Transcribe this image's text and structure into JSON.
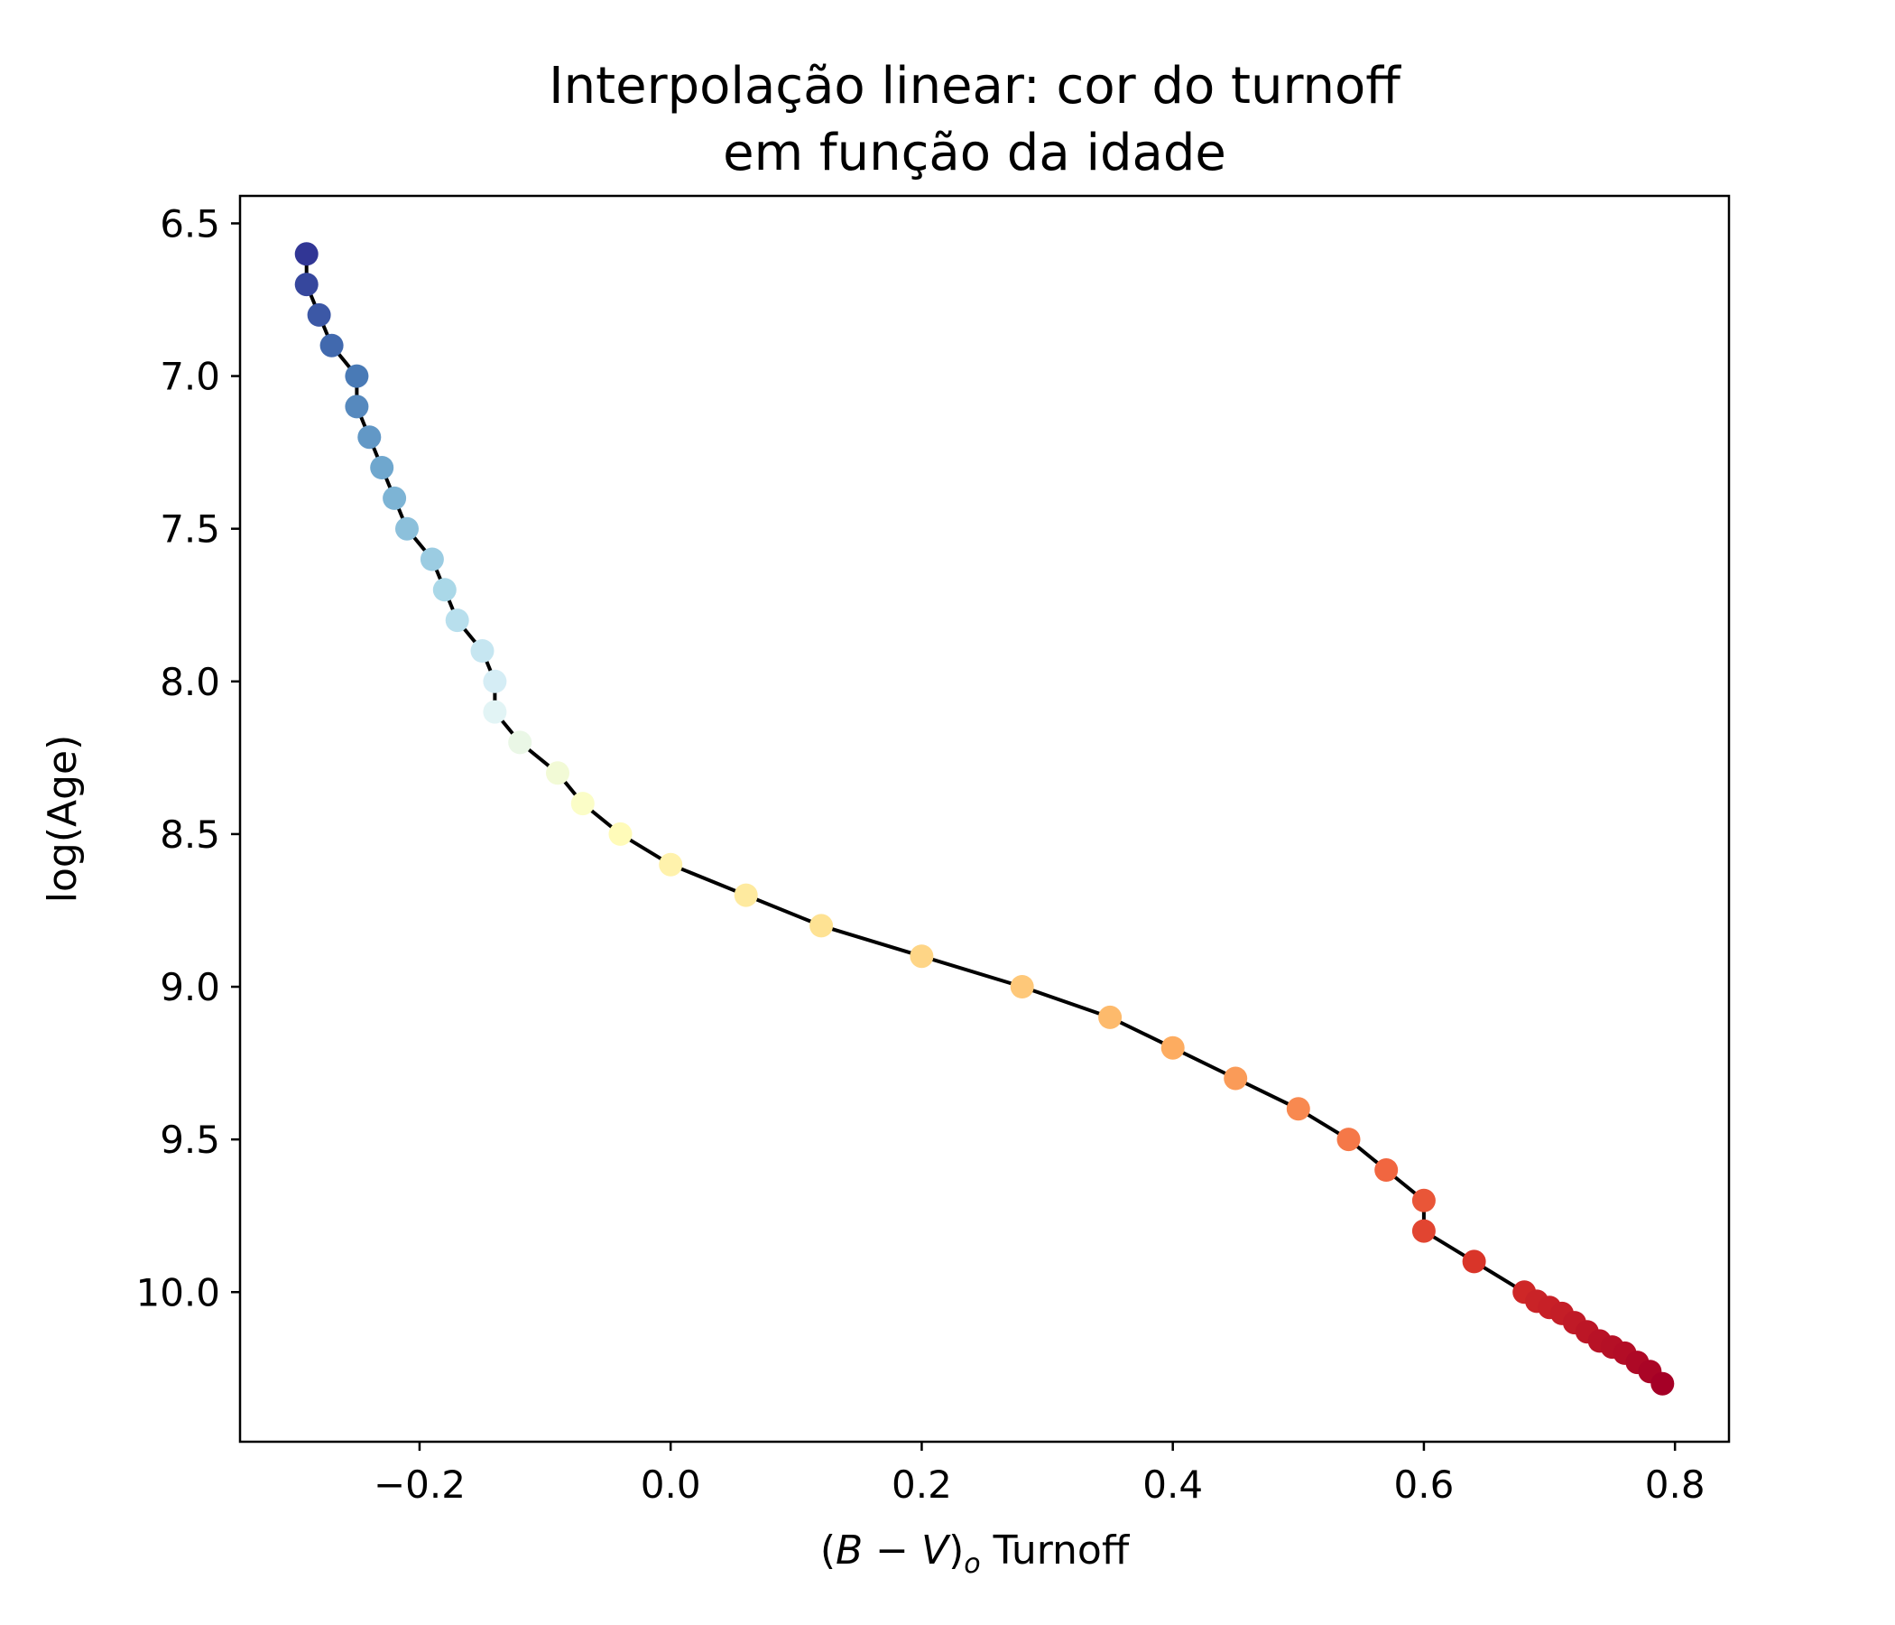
{
  "chart_data": {
    "type": "line",
    "title_lines": [
      "Interpolação linear: cor do turnoff",
      "em função da idade"
    ],
    "xlabel_parts": {
      "open": "(",
      "b": "B",
      "minus": " − ",
      "v": "V",
      "close": ")",
      "sub": "o",
      "rest": " Turnoff"
    },
    "ylabel": "log(Age)",
    "xlim": [
      -0.343,
      0.843
    ],
    "ylim": [
      10.49,
      6.41
    ],
    "y_inverted": true,
    "xticks": [
      -0.2,
      0.0,
      0.2,
      0.4,
      0.6,
      0.8
    ],
    "xtick_labels": [
      "−0.2",
      "0.0",
      "0.2",
      "0.4",
      "0.6",
      "0.8"
    ],
    "yticks": [
      6.5,
      7.0,
      7.5,
      8.0,
      8.5,
      9.0,
      9.5,
      10.0
    ],
    "ytick_labels": [
      "6.5",
      "7.0",
      "7.5",
      "8.0",
      "8.5",
      "9.0",
      "9.5",
      "10.0"
    ],
    "grid": false,
    "colormap": "RdYlBu_r",
    "line_color": "#000000",
    "series": [
      {
        "x": [
          -0.29,
          -0.29,
          -0.28,
          -0.27,
          -0.25,
          -0.25,
          -0.24,
          -0.23,
          -0.22,
          -0.21,
          -0.19,
          -0.18,
          -0.17,
          -0.15,
          -0.14,
          -0.14,
          -0.12,
          -0.09,
          -0.07,
          -0.04,
          0.0,
          0.06,
          0.12,
          0.2,
          0.28,
          0.35,
          0.4,
          0.45,
          0.5,
          0.54,
          0.57,
          0.6,
          0.6,
          0.64,
          0.68,
          0.69,
          0.7,
          0.71,
          0.72,
          0.73,
          0.74,
          0.75,
          0.76,
          0.77,
          0.78,
          0.79
        ],
        "y": [
          6.6,
          6.7,
          6.8,
          6.9,
          7.0,
          7.1,
          7.2,
          7.3,
          7.4,
          7.5,
          7.6,
          7.7,
          7.8,
          7.9,
          8.0,
          8.1,
          8.2,
          8.3,
          8.4,
          8.5,
          8.6,
          8.7,
          8.8,
          8.9,
          9.0,
          9.1,
          9.2,
          9.3,
          9.4,
          9.5,
          9.6,
          9.7,
          9.8,
          9.9,
          10.0,
          10.03,
          10.05,
          10.07,
          10.1,
          10.13,
          10.16,
          10.18,
          10.2,
          10.23,
          10.26,
          10.3
        ]
      }
    ]
  }
}
